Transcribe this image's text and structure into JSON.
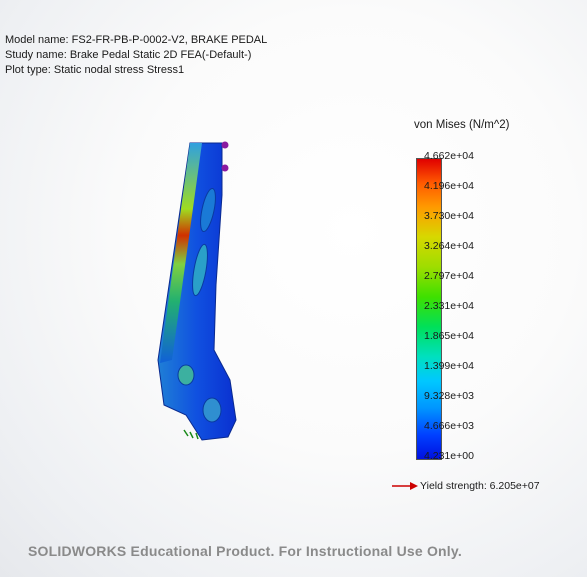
{
  "header": {
    "model_name": "Model name: FS2-FR-PB-P-0002-V2, BRAKE PEDAL",
    "study_name": "Study name: Brake Pedal Static 2D FEA(-Default-)",
    "plot_type": "Plot type: Static nodal stress Stress1"
  },
  "legend": {
    "title": "von Mises (N/m^2)",
    "ticks": [
      "4.662e+04",
      "4.196e+04",
      "3.730e+04",
      "3.264e+04",
      "2.797e+04",
      "2.331e+04",
      "1.865e+04",
      "1.399e+04",
      "9.328e+03",
      "4.666e+03",
      "4.231e+00"
    ],
    "yield_strength": "Yield strength: 6.205e+07",
    "yield_arrow_color": "#cc0000"
  },
  "footer": {
    "watermark": "SOLIDWORKS Educational Product. For Instructional Use Only."
  },
  "colors": {
    "max": "#e00000",
    "min": "#0010e0"
  }
}
